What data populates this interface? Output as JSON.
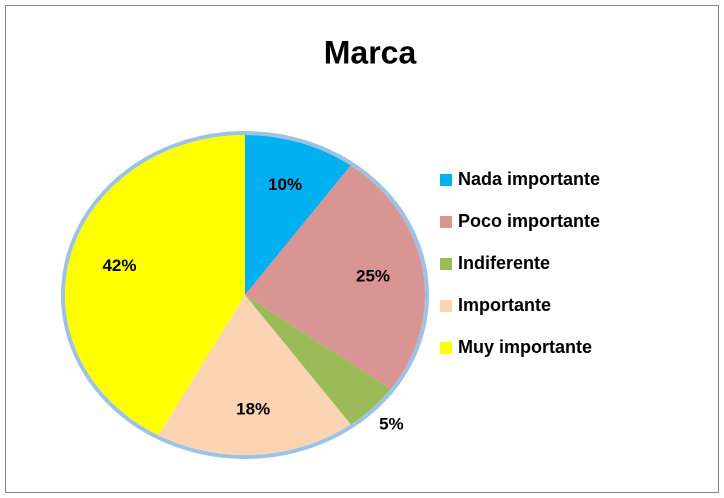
{
  "chart_data": {
    "type": "pie",
    "title": "Marca",
    "categories": [
      "Nada importante",
      "Poco importante",
      "Indiferente",
      "Importante",
      "Muy importante"
    ],
    "values": [
      10,
      25,
      5,
      18,
      42
    ],
    "value_labels": [
      "10%",
      "25%",
      "5%",
      "18%",
      "42%"
    ],
    "colors": [
      "#00B0F0",
      "#D99594",
      "#9BBB59",
      "#FBD4B4",
      "#FFFF00"
    ],
    "legend": "right"
  }
}
